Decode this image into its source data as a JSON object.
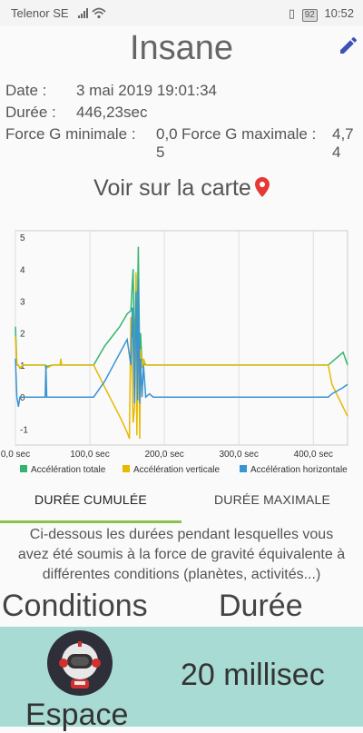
{
  "status": {
    "carrier": "Telenor SE",
    "battery": "92",
    "time": "10:52"
  },
  "header": {
    "title": "Insane"
  },
  "info": {
    "date_label": "Date :",
    "date_value": "3 mai 2019 19:01:34",
    "duration_label": "Durée :",
    "duration_value": "446,23sec",
    "gmin_label": "Force G minimale :",
    "gmin_value_line1": "0,0",
    "gmin_value_line2": "5",
    "gmax_label": "Force G maximale :",
    "gmax_value_line1": "4,7",
    "gmax_value_line2": "4"
  },
  "map_link": "Voir sur la carte",
  "chart_data": {
    "type": "line",
    "y_ticks": [
      "5",
      "4",
      "3",
      "2",
      "1",
      "0",
      "-1"
    ],
    "x_ticks": [
      "0,0 sec",
      "100,0 sec",
      "200,0 sec",
      "300,0 sec",
      "400,0 sec"
    ],
    "ylim": [
      -1.5,
      5.2
    ],
    "xlim": [
      0,
      446
    ],
    "grid": true,
    "legend_position": "bottom",
    "series": [
      {
        "name": "Accélération totale",
        "color": "#33b56f",
        "x": [
          0,
          2,
          4,
          6,
          8,
          10,
          12,
          40,
          41,
          50,
          60,
          62,
          105,
          120,
          140,
          150,
          155,
          158,
          160,
          162,
          163,
          165,
          167,
          168,
          170,
          172,
          175,
          180,
          185,
          200,
          420,
          440,
          446
        ],
        "y": [
          2.2,
          1.0,
          1.0,
          0.9,
          0.95,
          1.0,
          1.0,
          1.0,
          0.95,
          1.0,
          1.0,
          1.0,
          1.0,
          1.6,
          2.2,
          2.6,
          2.7,
          4.0,
          1.0,
          3.8,
          1.2,
          4.7,
          0.9,
          2.0,
          1.0,
          1.05,
          1.0,
          1.0,
          1.0,
          1.0,
          1.0,
          1.4,
          1.0
        ]
      },
      {
        "name": "Accélération verticale",
        "color": "#e8b900",
        "x": [
          0,
          2,
          4,
          6,
          8,
          10,
          12,
          40,
          41,
          50,
          60,
          61,
          62,
          105,
          120,
          140,
          150,
          153,
          155,
          158,
          160,
          162,
          163,
          165,
          167,
          168,
          170,
          172,
          175,
          180,
          185,
          200,
          420,
          425,
          446
        ],
        "y": [
          1.9,
          1.0,
          1.0,
          0.9,
          0.95,
          1.0,
          1.0,
          1.0,
          0.9,
          1.0,
          1.0,
          1.2,
          1.0,
          1.0,
          0.3,
          -0.6,
          -1.1,
          -1.3,
          2.5,
          -0.8,
          -0.3,
          3.9,
          -1.2,
          2.7,
          -1.3,
          1.5,
          0.9,
          1.2,
          1.0,
          1.0,
          1.0,
          1.0,
          1.0,
          0.4,
          -0.6
        ]
      },
      {
        "name": "Accélération horizontale",
        "color": "#3a93d4",
        "x": [
          0,
          2,
          4,
          6,
          8,
          10,
          12,
          40,
          41,
          42,
          50,
          60,
          62,
          105,
          120,
          150,
          155,
          157,
          160,
          162,
          164,
          165,
          167,
          168,
          170,
          172,
          175,
          180,
          185,
          200,
          420,
          425,
          440,
          446
        ],
        "y": [
          1.2,
          0.0,
          -0.3,
          0.0,
          0.0,
          0.0,
          0.0,
          0.0,
          1.0,
          0.0,
          0.0,
          0.0,
          0.0,
          0.0,
          0.5,
          1.8,
          1.0,
          2.8,
          -0.2,
          3.3,
          -0.1,
          3.7,
          -0.2,
          1.2,
          0.0,
          1.0,
          0.0,
          0.1,
          0.0,
          0.0,
          0.0,
          0.1,
          0.3,
          0.4
        ]
      }
    ]
  },
  "tabs": {
    "tab1": "DURÉE CUMULÉE",
    "tab2": "DURÉE MAXIMALE"
  },
  "description": {
    "line1": "Ci-dessous les durées pendant lesquelles vous",
    "line2": "avez été soumis à la force de gravité équivalente à",
    "line3": "différentes conditions (planètes, activités...)"
  },
  "columns": {
    "conditions": "Conditions",
    "duration": "Durée"
  },
  "row": {
    "condition": "Espace",
    "duration": "20 millisec",
    "icon": "astronaut-icon"
  }
}
